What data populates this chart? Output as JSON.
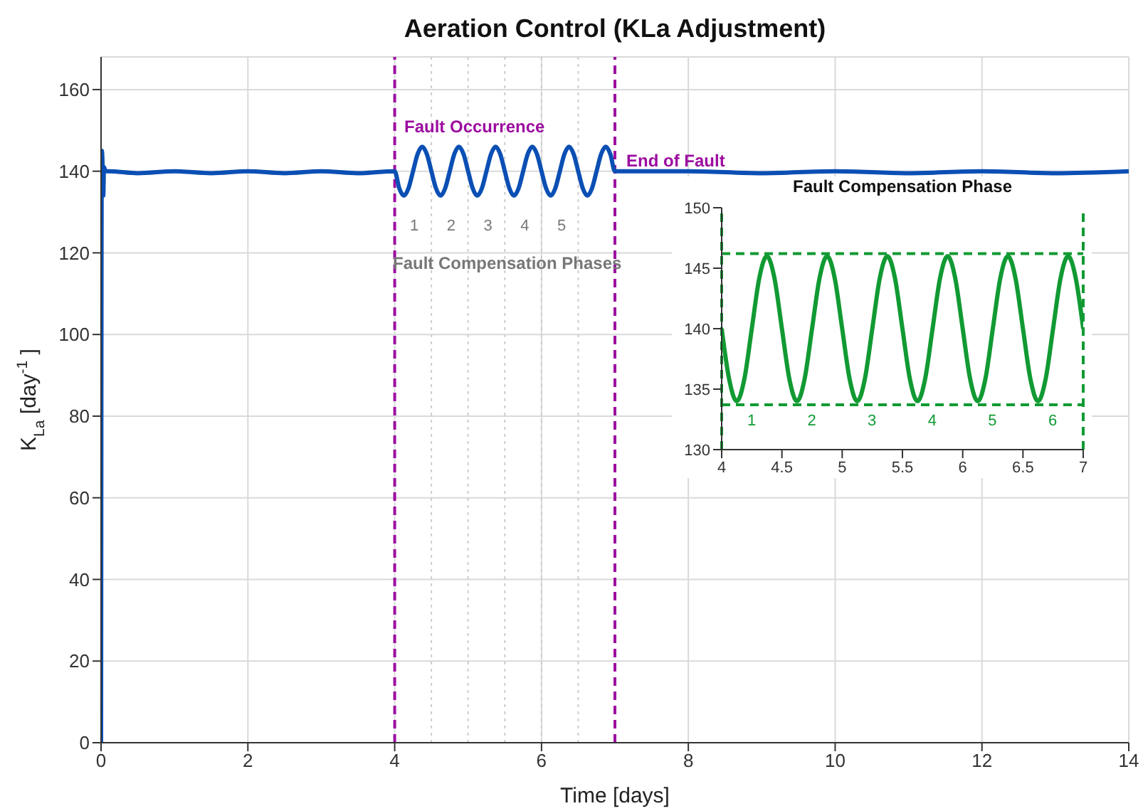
{
  "chart_data": [
    {
      "type": "line",
      "title": "Aeration Control (KLa Adjustment)",
      "xlabel": "Time [days]",
      "ylabel": "K$_{La}$ [day$^{-1}$]",
      "xlim": [
        0,
        14
      ],
      "xticks": [
        0,
        2,
        4,
        6,
        8,
        10,
        12,
        14
      ],
      "ylim": [
        0,
        168
      ],
      "yticks": [
        0,
        20,
        40,
        60,
        80,
        100,
        120,
        140,
        160
      ],
      "grid": true,
      "line_style": "solid",
      "marker": "none",
      "series": [
        {
          "color": "#0b4fb4",
          "x": [
            0,
            0.01,
            0.02,
            0.03,
            0.04,
            0.06,
            0.1,
            0.5,
            1,
            1.5,
            2,
            2.5,
            3,
            3.5,
            4,
            4.0625,
            4.125,
            4.1875,
            4.25,
            4.3125,
            4.375,
            4.4375,
            4.5,
            4.5625,
            4.625,
            4.6875,
            4.75,
            4.8125,
            4.875,
            4.9375,
            5,
            5.0625,
            5.125,
            5.1875,
            5.25,
            5.3125,
            5.375,
            5.4375,
            5.5,
            5.5625,
            5.625,
            5.6875,
            5.75,
            5.8125,
            5.875,
            5.9375,
            6,
            6.0625,
            6.125,
            6.1875,
            6.25,
            6.3125,
            6.375,
            6.4375,
            6.5,
            6.5625,
            6.625,
            6.6875,
            6.75,
            6.8125,
            6.875,
            6.9375,
            7,
            7.5,
            8,
            9,
            10,
            11,
            12,
            13,
            14
          ],
          "values": [
            0,
            145,
            142,
            134,
            141,
            140,
            140,
            139.5,
            140,
            139.5,
            140,
            139.5,
            140,
            139.5,
            140,
            135.8,
            134,
            135.8,
            140,
            144.2,
            146,
            144.2,
            140,
            135.8,
            134,
            135.8,
            140,
            144.2,
            146,
            144.2,
            140,
            135.8,
            134,
            135.8,
            140,
            144.2,
            146,
            144.2,
            140,
            135.8,
            134,
            135.8,
            140,
            144.2,
            146,
            144.2,
            140,
            135.8,
            134,
            135.8,
            140,
            144.2,
            146,
            144.2,
            140,
            135.8,
            134,
            135.8,
            140,
            144.2,
            146,
            144.2,
            140,
            140,
            140,
            139.5,
            140,
            139.5,
            140,
            139.5,
            140
          ]
        }
      ],
      "ref_lines": [
        {
          "axis": "x",
          "value": 4,
          "color": "#9c0ca0",
          "line_style": "dashed"
        },
        {
          "axis": "x",
          "value": 7,
          "color": "#9c0ca0",
          "line_style": "dashed"
        },
        {
          "axis": "x",
          "value": 4.5,
          "color": "#cccccc",
          "line_style": "dotted"
        },
        {
          "axis": "x",
          "value": 5,
          "color": "#cccccc",
          "line_style": "dotted"
        },
        {
          "axis": "x",
          "value": 5.5,
          "color": "#cccccc",
          "line_style": "dotted"
        },
        {
          "axis": "x",
          "value": 6,
          "color": "#cccccc",
          "line_style": "dotted"
        },
        {
          "axis": "x",
          "value": 6.5,
          "color": "#cccccc",
          "line_style": "dotted"
        }
      ],
      "annotations": [
        "Fault Occurrence",
        "End of Fault",
        "Fault Compensation Phases",
        "1",
        "2",
        "3",
        "4",
        "5"
      ]
    },
    {
      "type": "line",
      "title": "Fault Compensation Phase",
      "xlim": [
        4,
        7
      ],
      "xticks": [
        4,
        4.5,
        5,
        5.5,
        6,
        6.5,
        7
      ],
      "ylim": [
        130,
        150
      ],
      "yticks": [
        130,
        135,
        140,
        145,
        150
      ],
      "grid": false,
      "line_style": "solid",
      "marker": "none",
      "series": [
        {
          "color": "#119a33",
          "x": [
            4,
            4.0625,
            4.125,
            4.1875,
            4.25,
            4.3125,
            4.375,
            4.4375,
            4.5,
            4.5625,
            4.625,
            4.6875,
            4.75,
            4.8125,
            4.875,
            4.9375,
            5,
            5.0625,
            5.125,
            5.1875,
            5.25,
            5.3125,
            5.375,
            5.4375,
            5.5,
            5.5625,
            5.625,
            5.6875,
            5.75,
            5.8125,
            5.875,
            5.9375,
            6,
            6.0625,
            6.125,
            6.1875,
            6.25,
            6.3125,
            6.375,
            6.4375,
            6.5,
            6.5625,
            6.625,
            6.6875,
            6.75,
            6.8125,
            6.875,
            6.9375,
            7
          ],
          "values": [
            140,
            135.8,
            134,
            135.8,
            140,
            144.2,
            146,
            144.2,
            140,
            135.8,
            134,
            135.8,
            140,
            144.2,
            146,
            144.2,
            140,
            135.8,
            134,
            135.8,
            140,
            144.2,
            146,
            144.2,
            140,
            135.8,
            134,
            135.8,
            140,
            144.2,
            146,
            144.2,
            140,
            135.8,
            134,
            135.8,
            140,
            144.2,
            146,
            144.2,
            140,
            135.8,
            134,
            135.8,
            140,
            144.2,
            146,
            144.2,
            140
          ]
        }
      ],
      "ref_lines": [
        {
          "axis": "y",
          "value": 146.2,
          "color": "#119a33",
          "line_style": "dashed"
        },
        {
          "axis": "y",
          "value": 133.7,
          "color": "#119a33",
          "line_style": "dashed"
        },
        {
          "axis": "x",
          "value": 4,
          "color": "#119a33",
          "line_style": "dashed"
        },
        {
          "axis": "x",
          "value": 7,
          "color": "#119a33",
          "line_style": "dashed"
        }
      ],
      "annotations": [
        "1",
        "2",
        "3",
        "4",
        "5",
        "6"
      ]
    }
  ]
}
